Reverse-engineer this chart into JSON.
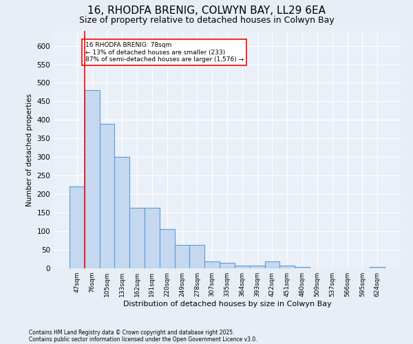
{
  "title1": "16, RHODFA BRENIG, COLWYN BAY, LL29 6EA",
  "title2": "Size of property relative to detached houses in Colwyn Bay",
  "xlabel": "Distribution of detached houses by size in Colwyn Bay",
  "ylabel": "Number of detached properties",
  "categories": [
    "47sqm",
    "76sqm",
    "105sqm",
    "133sqm",
    "162sqm",
    "191sqm",
    "220sqm",
    "249sqm",
    "278sqm",
    "307sqm",
    "335sqm",
    "364sqm",
    "393sqm",
    "422sqm",
    "451sqm",
    "480sqm",
    "509sqm",
    "537sqm",
    "566sqm",
    "595sqm",
    "624sqm"
  ],
  "values": [
    220,
    480,
    390,
    300,
    163,
    163,
    105,
    63,
    63,
    18,
    15,
    8,
    8,
    18,
    8,
    3,
    0,
    0,
    0,
    0,
    3
  ],
  "bar_color": "#c5d8f0",
  "bar_edge_color": "#5b9bd5",
  "red_line_index": 1,
  "annotation_text": "16 RHODFA BRENIG: 78sqm\n← 13% of detached houses are smaller (233)\n87% of semi-detached houses are larger (1,576) →",
  "footnote1": "Contains HM Land Registry data © Crown copyright and database right 2025.",
  "footnote2": "Contains public sector information licensed under the Open Government Licence v3.0.",
  "ylim": [
    0,
    640
  ],
  "yticks": [
    0,
    50,
    100,
    150,
    200,
    250,
    300,
    350,
    400,
    450,
    500,
    550,
    600
  ],
  "bg_color": "#e8eef6",
  "plot_bg_color": "#eaf0f8",
  "grid_color": "#ffffff",
  "title_fontsize": 11,
  "subtitle_fontsize": 9
}
